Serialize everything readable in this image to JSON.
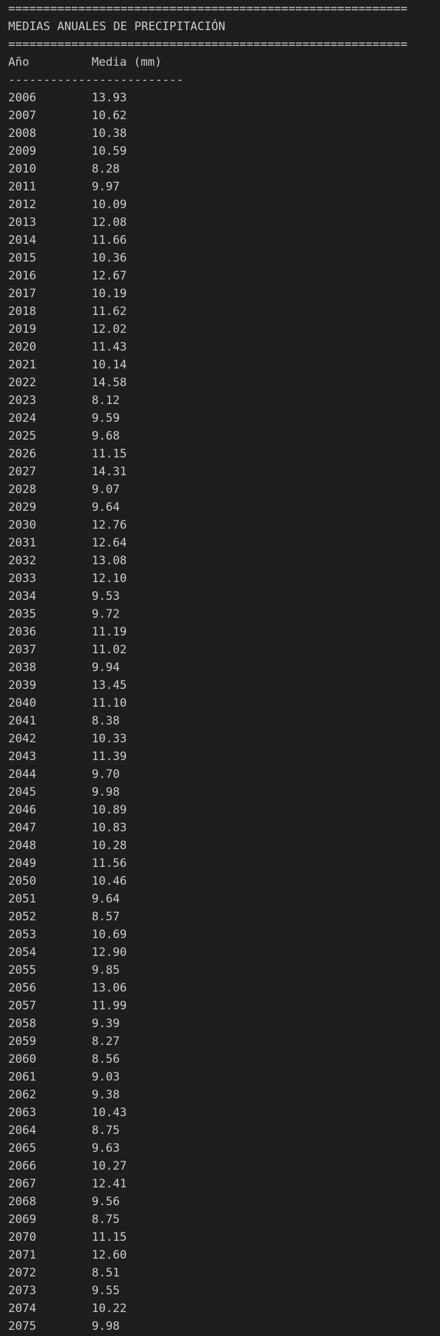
{
  "header": {
    "rule_top": "=========================================================",
    "title": "MEDIAS ANUALES DE PRECIPITACIÓN",
    "rule_bottom": "=========================================================",
    "col_year": "Año",
    "col_value": "Media (mm)",
    "separator": "-------------------------"
  },
  "rows": [
    {
      "year": "2006",
      "value": "13.93"
    },
    {
      "year": "2007",
      "value": "10.62"
    },
    {
      "year": "2008",
      "value": "10.38"
    },
    {
      "year": "2009",
      "value": "10.59"
    },
    {
      "year": "2010",
      "value": "8.28"
    },
    {
      "year": "2011",
      "value": "9.97"
    },
    {
      "year": "2012",
      "value": "10.09"
    },
    {
      "year": "2013",
      "value": "12.08"
    },
    {
      "year": "2014",
      "value": "11.66"
    },
    {
      "year": "2015",
      "value": "10.36"
    },
    {
      "year": "2016",
      "value": "12.67"
    },
    {
      "year": "2017",
      "value": "10.19"
    },
    {
      "year": "2018",
      "value": "11.62"
    },
    {
      "year": "2019",
      "value": "12.02"
    },
    {
      "year": "2020",
      "value": "11.43"
    },
    {
      "year": "2021",
      "value": "10.14"
    },
    {
      "year": "2022",
      "value": "14.58"
    },
    {
      "year": "2023",
      "value": "8.12"
    },
    {
      "year": "2024",
      "value": "9.59"
    },
    {
      "year": "2025",
      "value": "9.68"
    },
    {
      "year": "2026",
      "value": "11.15"
    },
    {
      "year": "2027",
      "value": "14.31"
    },
    {
      "year": "2028",
      "value": "9.07"
    },
    {
      "year": "2029",
      "value": "9.64"
    },
    {
      "year": "2030",
      "value": "12.76"
    },
    {
      "year": "2031",
      "value": "12.64"
    },
    {
      "year": "2032",
      "value": "13.08"
    },
    {
      "year": "2033",
      "value": "12.10"
    },
    {
      "year": "2034",
      "value": "9.53"
    },
    {
      "year": "2035",
      "value": "9.72"
    },
    {
      "year": "2036",
      "value": "11.19"
    },
    {
      "year": "2037",
      "value": "11.02"
    },
    {
      "year": "2038",
      "value": "9.94"
    },
    {
      "year": "2039",
      "value": "13.45"
    },
    {
      "year": "2040",
      "value": "11.10"
    },
    {
      "year": "2041",
      "value": "8.38"
    },
    {
      "year": "2042",
      "value": "10.33"
    },
    {
      "year": "2043",
      "value": "11.39"
    },
    {
      "year": "2044",
      "value": "9.70"
    },
    {
      "year": "2045",
      "value": "9.98"
    },
    {
      "year": "2046",
      "value": "10.89"
    },
    {
      "year": "2047",
      "value": "10.83"
    },
    {
      "year": "2048",
      "value": "10.28"
    },
    {
      "year": "2049",
      "value": "11.56"
    },
    {
      "year": "2050",
      "value": "10.46"
    },
    {
      "year": "2051",
      "value": "9.64"
    },
    {
      "year": "2052",
      "value": "8.57"
    },
    {
      "year": "2053",
      "value": "10.69"
    },
    {
      "year": "2054",
      "value": "12.90"
    },
    {
      "year": "2055",
      "value": "9.85"
    },
    {
      "year": "2056",
      "value": "13.06"
    },
    {
      "year": "2057",
      "value": "11.99"
    },
    {
      "year": "2058",
      "value": "9.39"
    },
    {
      "year": "2059",
      "value": "8.27"
    },
    {
      "year": "2060",
      "value": "8.56"
    },
    {
      "year": "2061",
      "value": "9.03"
    },
    {
      "year": "2062",
      "value": "9.38"
    },
    {
      "year": "2063",
      "value": "10.43"
    },
    {
      "year": "2064",
      "value": "8.75"
    },
    {
      "year": "2065",
      "value": "9.63"
    },
    {
      "year": "2066",
      "value": "10.27"
    },
    {
      "year": "2067",
      "value": "12.41"
    },
    {
      "year": "2068",
      "value": "9.56"
    },
    {
      "year": "2069",
      "value": "8.75"
    },
    {
      "year": "2070",
      "value": "11.15"
    },
    {
      "year": "2071",
      "value": "12.60"
    },
    {
      "year": "2072",
      "value": "8.51"
    },
    {
      "year": "2073",
      "value": "9.55"
    },
    {
      "year": "2074",
      "value": "10.22"
    },
    {
      "year": "2075",
      "value": "9.98"
    }
  ]
}
